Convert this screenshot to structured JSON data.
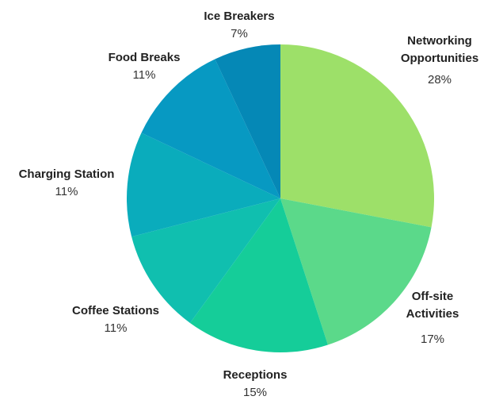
{
  "chart_data": {
    "type": "pie",
    "title": "",
    "start_angle_deg": 0,
    "direction": "clockwise",
    "legend": "none",
    "slices": [
      {
        "label_lines": [
          "Networking",
          "Opportunities"
        ],
        "value": 28,
        "value_label": "28%",
        "color": "#9de069"
      },
      {
        "label_lines": [
          "Off-site",
          "Activities"
        ],
        "value": 17,
        "value_label": "17%",
        "color": "#5bd98a"
      },
      {
        "label_lines": [
          "Receptions"
        ],
        "value": 15,
        "value_label": "15%",
        "color": "#15cd99"
      },
      {
        "label_lines": [
          "Coffee Stations"
        ],
        "value": 11,
        "value_label": "11%",
        "color": "#10bfaf"
      },
      {
        "label_lines": [
          "Charging Station"
        ],
        "value": 11,
        "value_label": "11%",
        "color": "#0aacbc"
      },
      {
        "label_lines": [
          "Food Breaks"
        ],
        "value": 11,
        "value_label": "11%",
        "color": "#0799c2"
      },
      {
        "label_lines": [
          "Ice Breakers"
        ],
        "value": 7,
        "value_label": "7%",
        "color": "#0588b6"
      }
    ]
  }
}
